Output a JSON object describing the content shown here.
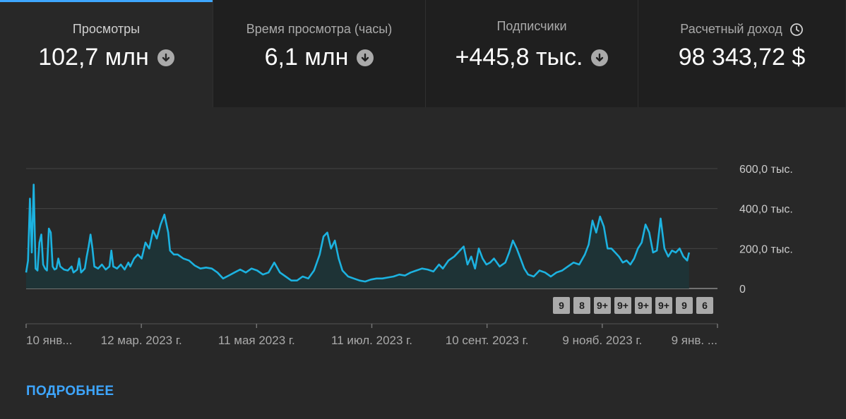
{
  "metrics": [
    {
      "title": "Просмотры",
      "value": "102,7 млн"
    },
    {
      "title": "Время просмотра (часы)",
      "value": "6,1 млн"
    },
    {
      "title": "Подписчики",
      "value": "+445,8 тыс."
    },
    {
      "title": "Расчетный доход",
      "value": "98 343,72 $"
    }
  ],
  "icons": {
    "trend": "arrow-down-circle-icon",
    "revenue_info": "clock-icon"
  },
  "colors": {
    "accent": "#3ea6ff",
    "line": "#1cb2e0",
    "area": "#1e3336"
  },
  "chart_data": {
    "type": "area",
    "y_ticks": [
      "600,0 тыс.",
      "400,0 тыс.",
      "200,0 тыс.",
      "0"
    ],
    "x_ticks": [
      "10 янв...",
      "12 мар. 2023 г.",
      "11 мая 2023 г.",
      "11 июл. 2023 г.",
      "10 сент. 2023 г.",
      "9 нояб. 2023 г.",
      "9 янв. ..."
    ],
    "ylim": [
      0,
      600000
    ],
    "x_range": [
      "2023-01-10",
      "2024-01-09"
    ],
    "grid": true,
    "series": [
      {
        "values": [
          [
            0,
            80000
          ],
          [
            1,
            140000
          ],
          [
            2,
            450000
          ],
          [
            3,
            180000
          ],
          [
            4,
            520000
          ],
          [
            5,
            100000
          ],
          [
            6,
            90000
          ],
          [
            7,
            230000
          ],
          [
            8,
            270000
          ],
          [
            9,
            120000
          ],
          [
            10,
            100000
          ],
          [
            11,
            90000
          ],
          [
            12,
            300000
          ],
          [
            13,
            280000
          ],
          [
            14,
            110000
          ],
          [
            15,
            95000
          ],
          [
            16,
            100000
          ],
          [
            17,
            150000
          ],
          [
            18,
            110000
          ],
          [
            20,
            95000
          ],
          [
            22,
            90000
          ],
          [
            24,
            110000
          ],
          [
            25,
            80000
          ],
          [
            27,
            95000
          ],
          [
            28,
            150000
          ],
          [
            29,
            80000
          ],
          [
            31,
            100000
          ],
          [
            32,
            160000
          ],
          [
            33,
            210000
          ],
          [
            34,
            270000
          ],
          [
            35,
            200000
          ],
          [
            36,
            110000
          ],
          [
            38,
            100000
          ],
          [
            40,
            120000
          ],
          [
            42,
            95000
          ],
          [
            44,
            110000
          ],
          [
            45,
            190000
          ],
          [
            46,
            110000
          ],
          [
            48,
            100000
          ],
          [
            50,
            120000
          ],
          [
            52,
            95000
          ],
          [
            54,
            130000
          ],
          [
            55,
            110000
          ],
          [
            57,
            150000
          ],
          [
            59,
            170000
          ],
          [
            61,
            150000
          ],
          [
            63,
            230000
          ],
          [
            65,
            200000
          ],
          [
            67,
            290000
          ],
          [
            69,
            250000
          ],
          [
            71,
            320000
          ],
          [
            73,
            370000
          ],
          [
            75,
            280000
          ],
          [
            76,
            190000
          ],
          [
            78,
            170000
          ],
          [
            80,
            170000
          ],
          [
            83,
            150000
          ],
          [
            86,
            140000
          ],
          [
            89,
            115000
          ],
          [
            92,
            100000
          ],
          [
            95,
            105000
          ],
          [
            98,
            100000
          ],
          [
            101,
            80000
          ],
          [
            104,
            50000
          ],
          [
            107,
            65000
          ],
          [
            110,
            80000
          ],
          [
            113,
            95000
          ],
          [
            116,
            80000
          ],
          [
            119,
            100000
          ],
          [
            122,
            90000
          ],
          [
            125,
            70000
          ],
          [
            128,
            80000
          ],
          [
            131,
            130000
          ],
          [
            134,
            80000
          ],
          [
            137,
            60000
          ],
          [
            140,
            40000
          ],
          [
            143,
            40000
          ],
          [
            146,
            60000
          ],
          [
            149,
            50000
          ],
          [
            152,
            90000
          ],
          [
            155,
            170000
          ],
          [
            157,
            260000
          ],
          [
            159,
            280000
          ],
          [
            161,
            200000
          ],
          [
            163,
            240000
          ],
          [
            165,
            150000
          ],
          [
            167,
            90000
          ],
          [
            170,
            60000
          ],
          [
            173,
            50000
          ],
          [
            176,
            40000
          ],
          [
            179,
            35000
          ],
          [
            182,
            45000
          ],
          [
            185,
            50000
          ],
          [
            188,
            50000
          ],
          [
            191,
            55000
          ],
          [
            194,
            60000
          ],
          [
            197,
            70000
          ],
          [
            200,
            65000
          ],
          [
            203,
            80000
          ],
          [
            206,
            90000
          ],
          [
            209,
            100000
          ],
          [
            212,
            95000
          ],
          [
            215,
            85000
          ],
          [
            218,
            120000
          ],
          [
            220,
            100000
          ],
          [
            223,
            140000
          ],
          [
            226,
            160000
          ],
          [
            229,
            190000
          ],
          [
            231,
            210000
          ],
          [
            233,
            120000
          ],
          [
            235,
            160000
          ],
          [
            237,
            100000
          ],
          [
            239,
            200000
          ],
          [
            241,
            150000
          ],
          [
            243,
            120000
          ],
          [
            245,
            130000
          ],
          [
            247,
            150000
          ],
          [
            250,
            110000
          ],
          [
            253,
            130000
          ],
          [
            255,
            180000
          ],
          [
            257,
            240000
          ],
          [
            259,
            200000
          ],
          [
            261,
            150000
          ],
          [
            263,
            100000
          ],
          [
            265,
            70000
          ],
          [
            268,
            60000
          ],
          [
            271,
            90000
          ],
          [
            274,
            80000
          ],
          [
            277,
            60000
          ],
          [
            280,
            80000
          ],
          [
            283,
            90000
          ],
          [
            286,
            110000
          ],
          [
            289,
            130000
          ],
          [
            292,
            120000
          ],
          [
            295,
            170000
          ],
          [
            297,
            220000
          ],
          [
            299,
            340000
          ],
          [
            301,
            280000
          ],
          [
            303,
            360000
          ],
          [
            305,
            310000
          ],
          [
            307,
            200000
          ],
          [
            309,
            200000
          ],
          [
            311,
            180000
          ],
          [
            313,
            160000
          ],
          [
            315,
            130000
          ],
          [
            317,
            140000
          ],
          [
            319,
            120000
          ],
          [
            321,
            150000
          ],
          [
            323,
            200000
          ],
          [
            325,
            230000
          ],
          [
            327,
            320000
          ],
          [
            329,
            280000
          ],
          [
            331,
            180000
          ],
          [
            333,
            190000
          ],
          [
            335,
            350000
          ],
          [
            337,
            200000
          ],
          [
            339,
            160000
          ],
          [
            341,
            190000
          ],
          [
            343,
            180000
          ],
          [
            345,
            200000
          ],
          [
            347,
            160000
          ],
          [
            349,
            140000
          ],
          [
            350,
            180000
          ]
        ]
      }
    ],
    "markers": [
      "9",
      "8",
      "9+",
      "9+",
      "9+",
      "9+",
      "9",
      "6"
    ]
  },
  "footer": {
    "more_link": "ПОДРОБНЕЕ"
  }
}
